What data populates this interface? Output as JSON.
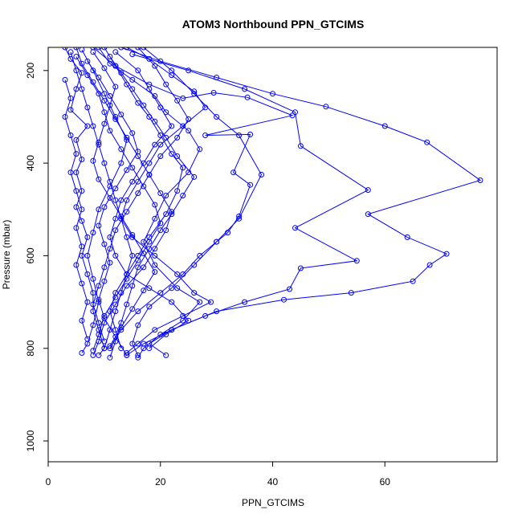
{
  "chart_data": {
    "type": "line",
    "title": "ATOM3 Northbound PPN_GTCIMS",
    "xlabel": "PPN_GTCIMS",
    "ylabel": "Pressure (mbar)",
    "xlim": [
      0,
      80
    ],
    "ylim": [
      1045,
      150
    ],
    "y_reversed": true,
    "x_ticks": [
      0,
      20,
      40,
      60
    ],
    "y_ticks": [
      200,
      400,
      600,
      800,
      1000
    ],
    "line_color": "#0000ff",
    "marker": "open-circle",
    "grid": false,
    "legend": "none",
    "series": [
      {
        "values": [
          [
            3,
            150
          ],
          [
            4,
            175
          ],
          [
            6,
            205
          ],
          [
            5,
            240
          ],
          [
            4,
            285
          ],
          [
            7,
            320
          ],
          [
            5,
            350
          ],
          [
            6,
            392
          ],
          [
            5,
            420
          ],
          [
            6,
            460
          ],
          [
            5,
            495
          ],
          [
            6,
            525
          ],
          [
            7,
            560
          ],
          [
            6,
            600
          ],
          [
            7,
            640
          ],
          [
            8,
            680
          ],
          [
            8,
            720
          ],
          [
            9,
            760
          ],
          [
            10,
            800
          ]
        ]
      },
      {
        "values": [
          [
            10,
            150
          ],
          [
            12,
            190
          ],
          [
            14,
            230
          ],
          [
            16,
            270
          ],
          [
            18,
            300
          ],
          [
            20,
            340
          ],
          [
            22,
            380
          ],
          [
            24,
            410
          ],
          [
            23,
            460
          ],
          [
            21,
            510
          ],
          [
            18,
            560
          ],
          [
            16,
            600
          ],
          [
            14,
            640
          ],
          [
            12,
            680
          ],
          [
            11,
            720
          ],
          [
            12,
            760
          ],
          [
            13,
            800
          ]
        ]
      },
      {
        "values": [
          [
            17,
            150
          ],
          [
            22,
            200
          ],
          [
            26,
            250
          ],
          [
            30,
            300
          ],
          [
            34,
            340
          ],
          [
            38,
            425
          ],
          [
            34,
            520
          ],
          [
            30,
            570
          ],
          [
            26,
            620
          ],
          [
            22,
            670
          ],
          [
            18,
            710
          ],
          [
            16,
            750
          ],
          [
            15,
            790
          ],
          [
            16,
            815
          ]
        ]
      },
      {
        "values": [
          [
            13,
            150
          ],
          [
            20,
            180
          ],
          [
            30,
            215
          ],
          [
            40,
            250
          ],
          [
            49.5,
            278
          ],
          [
            60,
            320
          ],
          [
            67.5,
            355
          ],
          [
            77,
            437
          ],
          [
            57,
            510
          ],
          [
            64,
            560
          ],
          [
            71,
            596
          ],
          [
            68,
            620
          ],
          [
            65,
            655
          ],
          [
            54,
            680
          ],
          [
            42,
            695
          ],
          [
            30,
            720
          ],
          [
            22,
            760
          ],
          [
            18,
            790
          ],
          [
            21,
            815
          ]
        ]
      },
      {
        "values": [
          [
            15,
            165
          ],
          [
            25,
            200
          ],
          [
            35,
            240
          ],
          [
            44,
            290
          ],
          [
            45,
            363
          ],
          [
            57,
            458
          ],
          [
            44,
            540
          ],
          [
            55,
            611
          ],
          [
            45,
            627
          ],
          [
            43,
            672
          ],
          [
            35,
            700
          ],
          [
            28,
            730
          ],
          [
            22,
            760
          ],
          [
            17,
            790
          ],
          [
            14,
            815
          ]
        ]
      },
      {
        "values": [
          [
            8,
            150
          ],
          [
            12,
            190
          ],
          [
            18,
            230
          ],
          [
            24,
            260
          ],
          [
            29.5,
            248
          ],
          [
            35.5,
            258
          ],
          [
            43.5,
            297
          ],
          [
            28,
            340
          ],
          [
            36,
            338
          ],
          [
            33,
            420
          ],
          [
            36,
            447
          ],
          [
            34,
            515
          ],
          [
            32,
            550
          ],
          [
            30,
            570
          ],
          [
            27,
            600
          ],
          [
            24,
            640
          ],
          [
            20,
            680
          ],
          [
            16,
            720
          ],
          [
            13,
            760
          ],
          [
            11,
            800
          ]
        ]
      },
      {
        "values": [
          [
            4,
            160
          ],
          [
            5,
            200
          ],
          [
            6,
            240
          ],
          [
            7,
            280
          ],
          [
            8,
            320
          ],
          [
            9,
            360
          ],
          [
            10,
            400
          ],
          [
            11,
            440
          ],
          [
            12,
            480
          ],
          [
            13,
            520
          ],
          [
            14,
            560
          ],
          [
            15,
            600
          ],
          [
            14,
            640
          ],
          [
            13,
            680
          ],
          [
            12,
            720
          ],
          [
            11,
            760
          ],
          [
            10,
            800
          ],
          [
            9,
            815
          ]
        ]
      },
      {
        "values": [
          [
            6,
            155
          ],
          [
            8,
            200
          ],
          [
            10,
            250
          ],
          [
            12,
            300
          ],
          [
            14,
            350
          ],
          [
            13,
            400
          ],
          [
            11,
            450
          ],
          [
            9,
            500
          ],
          [
            8,
            550
          ],
          [
            7,
            600
          ],
          [
            8,
            650
          ],
          [
            9,
            700
          ],
          [
            8,
            750
          ],
          [
            7,
            790
          ],
          [
            6,
            810
          ]
        ]
      },
      {
        "values": [
          [
            9,
            150
          ],
          [
            11,
            185
          ],
          [
            15,
            220
          ],
          [
            19,
            255
          ],
          [
            21,
            290
          ],
          [
            25,
            330
          ],
          [
            27,
            370
          ],
          [
            25,
            420
          ],
          [
            21,
            470
          ],
          [
            19,
            520
          ],
          [
            17,
            570
          ],
          [
            19,
            620
          ],
          [
            23,
            670
          ],
          [
            27,
            700
          ],
          [
            24,
            740
          ],
          [
            20,
            770
          ],
          [
            17,
            800
          ],
          [
            16,
            820
          ]
        ]
      },
      {
        "values": [
          [
            5,
            170
          ],
          [
            7,
            210
          ],
          [
            9,
            250
          ],
          [
            10,
            290
          ],
          [
            11,
            330
          ],
          [
            13,
            370
          ],
          [
            15,
            410
          ],
          [
            17,
            450
          ],
          [
            19,
            490
          ],
          [
            20,
            530
          ],
          [
            18,
            570
          ],
          [
            16,
            610
          ],
          [
            14,
            650
          ],
          [
            12,
            690
          ],
          [
            10,
            730
          ],
          [
            9,
            770
          ],
          [
            8,
            805
          ]
        ]
      },
      {
        "values": [
          [
            12,
            160
          ],
          [
            16,
            200
          ],
          [
            18,
            240
          ],
          [
            20,
            280
          ],
          [
            22,
            320
          ],
          [
            19,
            360
          ],
          [
            17,
            400
          ],
          [
            15,
            440
          ],
          [
            13,
            480
          ],
          [
            12,
            520
          ],
          [
            11,
            560
          ],
          [
            12,
            600
          ],
          [
            14,
            640
          ],
          [
            18,
            670
          ],
          [
            22,
            700
          ],
          [
            25,
            740
          ],
          [
            21,
            770
          ],
          [
            18,
            800
          ]
        ]
      },
      {
        "values": [
          [
            7,
            180
          ],
          [
            9,
            215
          ],
          [
            11,
            255
          ],
          [
            13,
            295
          ],
          [
            15,
            335
          ],
          [
            16,
            375
          ],
          [
            14,
            415
          ],
          [
            12,
            455
          ],
          [
            10,
            495
          ],
          [
            9,
            535
          ],
          [
            10,
            575
          ],
          [
            11,
            615
          ],
          [
            10,
            655
          ],
          [
            9,
            695
          ],
          [
            10,
            735
          ],
          [
            12,
            775
          ],
          [
            14,
            815
          ]
        ]
      },
      {
        "values": [
          [
            3,
            220
          ],
          [
            4,
            260
          ],
          [
            3,
            300
          ],
          [
            4,
            340
          ],
          [
            5,
            380
          ],
          [
            4,
            420
          ],
          [
            5,
            460
          ],
          [
            6,
            500
          ],
          [
            5,
            540
          ],
          [
            6,
            580
          ],
          [
            5,
            620
          ],
          [
            6,
            660
          ],
          [
            7,
            700
          ],
          [
            6,
            740
          ],
          [
            7,
            780
          ]
        ]
      },
      {
        "values": [
          [
            14,
            150
          ],
          [
            18,
            175
          ],
          [
            22,
            210
          ],
          [
            26,
            245
          ],
          [
            28,
            280
          ],
          [
            24,
            320
          ],
          [
            20,
            360
          ],
          [
            18,
            400
          ],
          [
            16,
            440
          ],
          [
            14,
            480
          ],
          [
            13,
            520
          ],
          [
            15,
            560
          ],
          [
            19,
            600
          ],
          [
            23,
            640
          ],
          [
            26,
            680
          ],
          [
            29,
            700
          ],
          [
            24,
            730
          ],
          [
            19,
            760
          ],
          [
            16,
            790
          ],
          [
            14,
            810
          ]
        ]
      },
      {
        "values": [
          [
            11,
            170
          ],
          [
            13,
            205
          ],
          [
            15,
            240
          ],
          [
            17,
            275
          ],
          [
            19,
            310
          ],
          [
            21,
            345
          ],
          [
            23,
            385
          ],
          [
            26,
            430
          ],
          [
            24,
            470
          ],
          [
            22,
            510
          ],
          [
            20,
            545
          ],
          [
            18,
            585
          ],
          [
            16,
            625
          ],
          [
            15,
            665
          ],
          [
            14,
            705
          ],
          [
            13,
            745
          ],
          [
            12,
            785
          ],
          [
            11,
            820
          ]
        ]
      },
      {
        "values": [
          [
            8,
            160
          ],
          [
            10,
            195
          ],
          [
            12,
            235
          ],
          [
            11,
            275
          ],
          [
            10,
            315
          ],
          [
            9,
            355
          ],
          [
            8,
            395
          ],
          [
            9,
            435
          ],
          [
            11,
            475
          ],
          [
            13,
            515
          ],
          [
            15,
            555
          ],
          [
            17,
            595
          ],
          [
            19,
            635
          ],
          [
            17,
            675
          ],
          [
            15,
            715
          ],
          [
            13,
            755
          ],
          [
            11,
            795
          ]
        ]
      },
      {
        "values": [
          [
            16,
            150
          ],
          [
            19,
            190
          ],
          [
            21,
            230
          ],
          [
            23,
            265
          ],
          [
            25,
            305
          ],
          [
            23,
            345
          ],
          [
            20,
            385
          ],
          [
            18,
            425
          ],
          [
            16,
            465
          ],
          [
            14,
            505
          ],
          [
            12,
            545
          ],
          [
            11,
            585
          ],
          [
            10,
            625
          ],
          [
            9,
            665
          ],
          [
            8,
            705
          ],
          [
            9,
            745
          ],
          [
            10,
            785
          ]
        ]
      },
      {
        "values": [
          [
            5,
            150
          ],
          [
            6,
            185
          ],
          [
            8,
            225
          ],
          [
            10,
            265
          ],
          [
            12,
            305
          ],
          [
            14,
            345
          ],
          [
            16,
            385
          ],
          [
            18,
            425
          ],
          [
            20,
            465
          ],
          [
            22,
            505
          ],
          [
            21,
            545
          ],
          [
            19,
            585
          ],
          [
            17,
            625
          ],
          [
            14,
            665
          ],
          [
            12,
            705
          ],
          [
            10,
            745
          ],
          [
            9,
            785
          ],
          [
            8,
            815
          ]
        ]
      }
    ]
  }
}
